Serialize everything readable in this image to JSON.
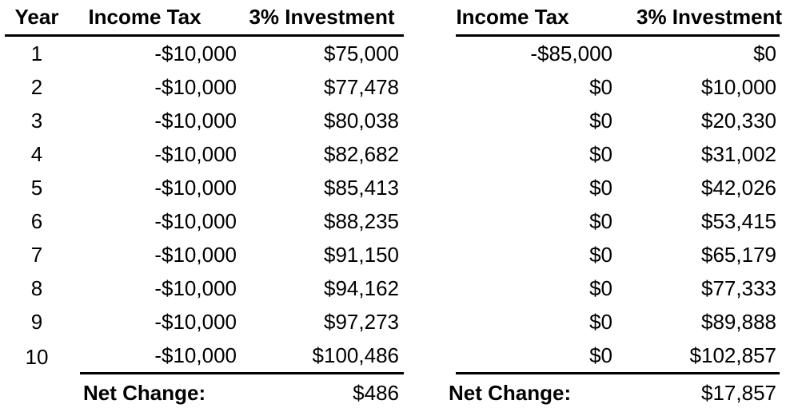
{
  "page": {
    "background_color": "#ffffff",
    "text_color": "#000000",
    "rule_color": "#000000"
  },
  "left_table": {
    "headers": [
      "Year",
      "Income Tax",
      "3% Investment"
    ],
    "rows": [
      [
        "1",
        "-$10,000",
        "$75,000"
      ],
      [
        "2",
        "-$10,000",
        "$77,478"
      ],
      [
        "3",
        "-$10,000",
        "$80,038"
      ],
      [
        "4",
        "-$10,000",
        "$82,682"
      ],
      [
        "5",
        "-$10,000",
        "$85,413"
      ],
      [
        "6",
        "-$10,000",
        "$88,235"
      ],
      [
        "7",
        "-$10,000",
        "$91,150"
      ],
      [
        "8",
        "-$10,000",
        "$94,162"
      ],
      [
        "9",
        "-$10,000",
        "$97,273"
      ],
      [
        "10",
        "-$10,000",
        "$100,486"
      ]
    ],
    "footer": {
      "label": "Net Change:",
      "value": "$486"
    }
  },
  "right_table": {
    "headers": [
      "Income Tax",
      "3% Investment"
    ],
    "rows": [
      [
        "-$85,000",
        "$0"
      ],
      [
        "$0",
        "$10,000"
      ],
      [
        "$0",
        "$20,330"
      ],
      [
        "$0",
        "$31,002"
      ],
      [
        "$0",
        "$42,026"
      ],
      [
        "$0",
        "$53,415"
      ],
      [
        "$0",
        "$65,179"
      ],
      [
        "$0",
        "$77,333"
      ],
      [
        "$0",
        "$89,888"
      ],
      [
        "$0",
        "$102,857"
      ]
    ],
    "footer": {
      "label": "Net Change:",
      "value": "$17,857"
    }
  }
}
